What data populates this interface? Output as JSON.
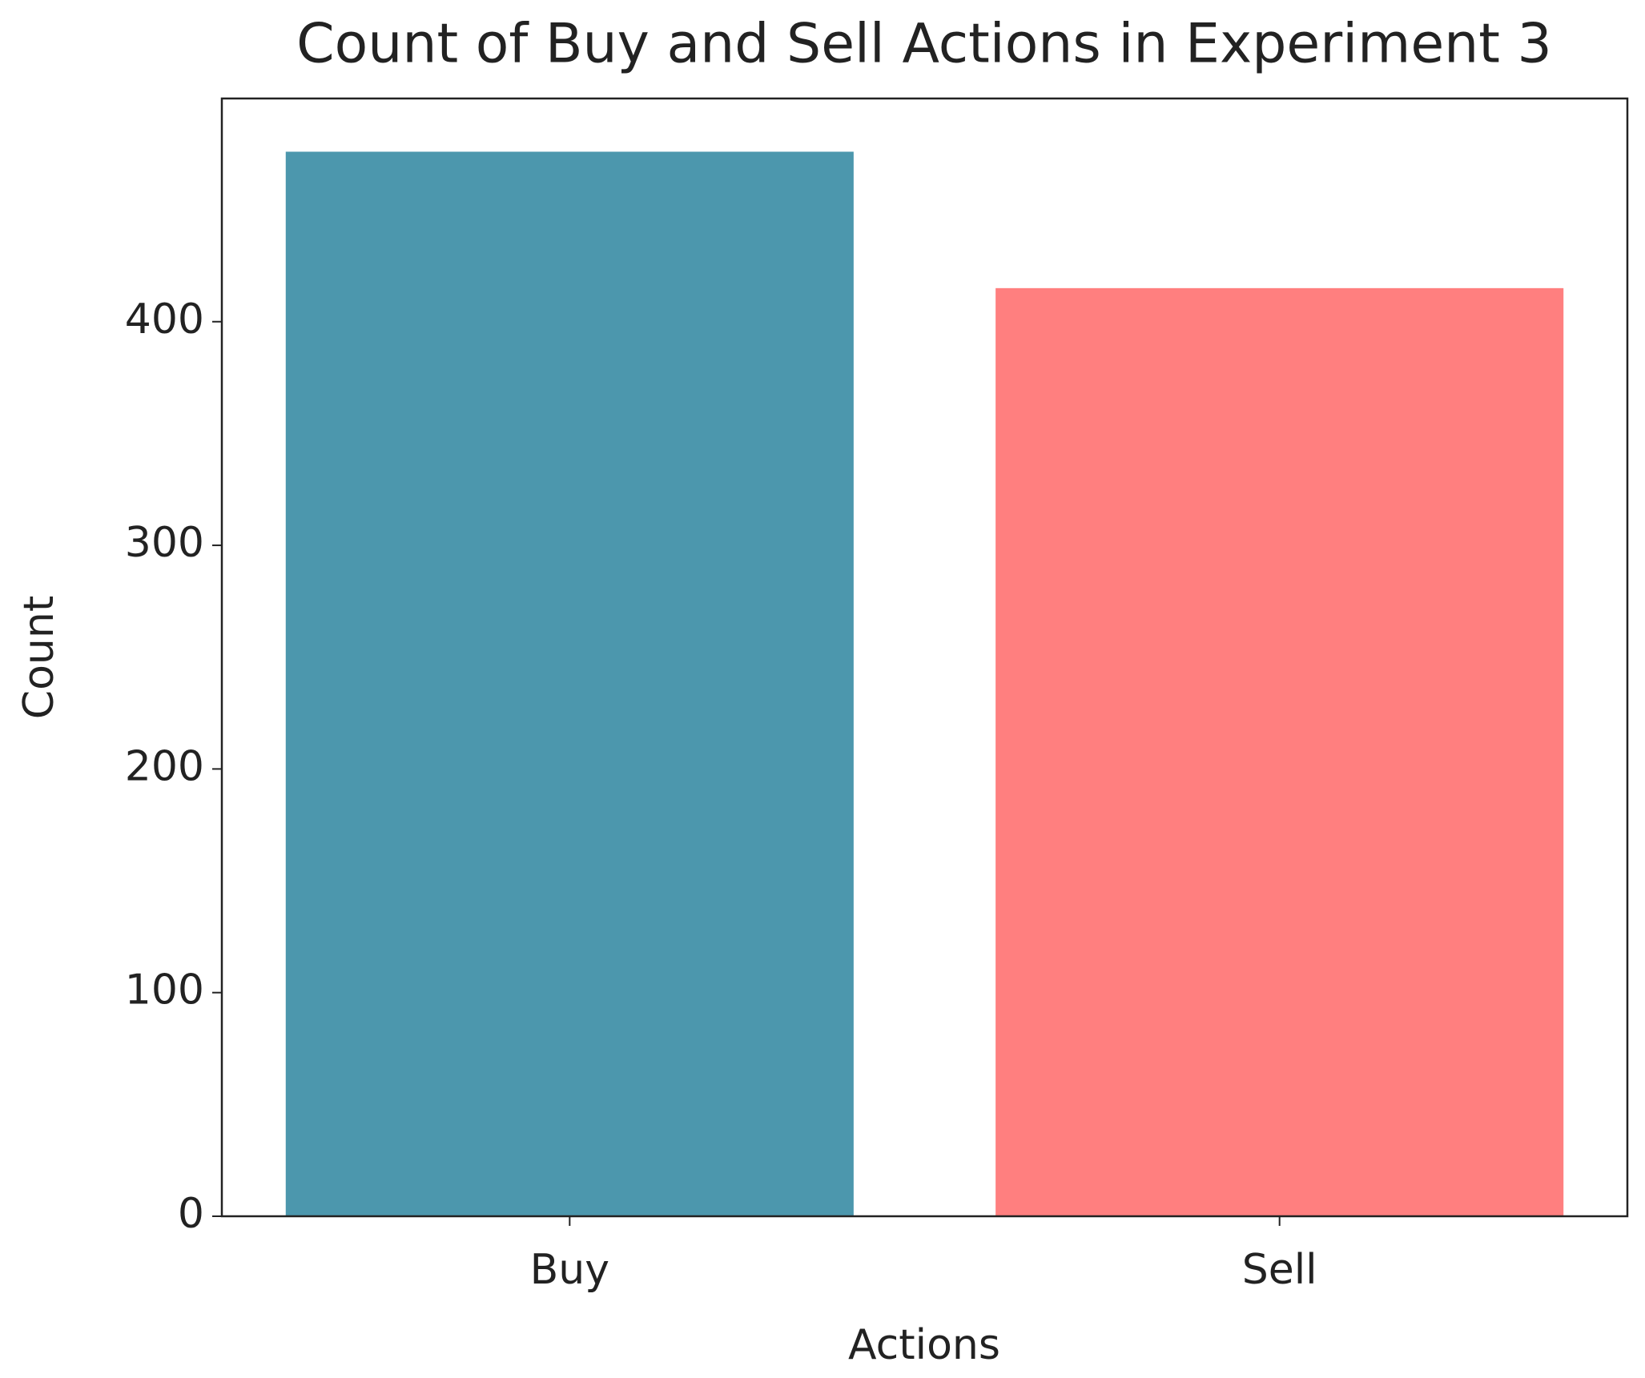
{
  "chart_data": {
    "type": "bar",
    "title": "Count of Buy and Sell Actions in Experiment 3",
    "x_label": "Actions",
    "y_label": "Count",
    "categories": [
      "Buy",
      "Sell"
    ],
    "values": [
      476,
      415
    ],
    "colors": [
      "#4c97ad",
      "#ff7f7f"
    ],
    "ylim": [
      0,
      499.8
    ],
    "yticks": [
      0,
      100,
      200,
      300,
      400
    ],
    "grid": false
  }
}
